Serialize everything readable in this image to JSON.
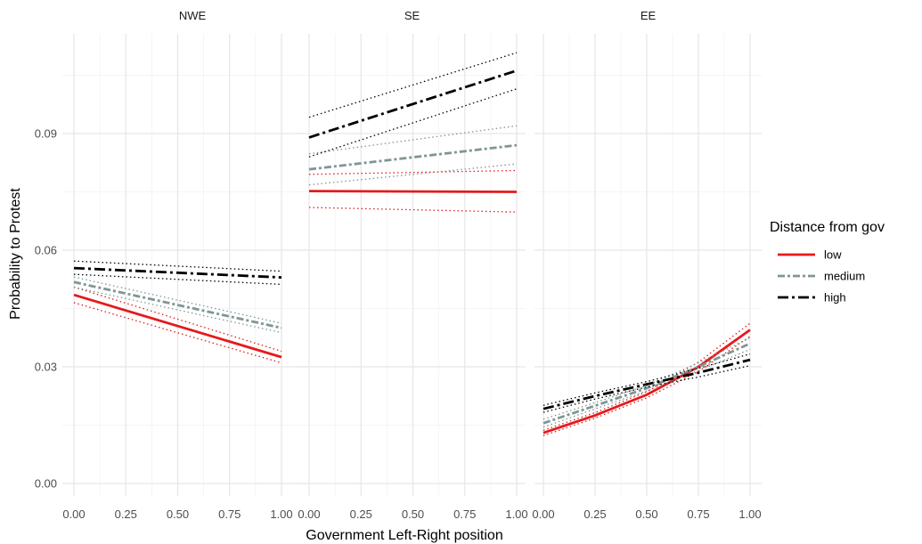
{
  "chart_data": {
    "type": "line",
    "xlabel": "Government Left-Right position",
    "ylabel": "Probability to Protest",
    "x_ticks": [
      "0.00",
      "0.25",
      "0.50",
      "0.75",
      "1.00"
    ],
    "y_ticks": [
      "0.00",
      "0.03",
      "0.06",
      "0.09"
    ],
    "xlim": [
      0,
      1
    ],
    "ylim": [
      0,
      0.11
    ],
    "grid": true,
    "legend": {
      "title": "Distance from gov",
      "position": "right",
      "entries": [
        {
          "label": "low",
          "color": "#e41a1c",
          "dash": "solid"
        },
        {
          "label": "medium",
          "color": "#7f9696",
          "dash": "dashdot"
        },
        {
          "label": "high",
          "color": "#000000",
          "dash": "longdash-dot"
        }
      ]
    },
    "panels": [
      {
        "title": "NWE",
        "series": [
          {
            "name": "low",
            "x": [
              0,
              1
            ],
            "y": [
              0.0485,
              0.0325
            ],
            "lower": [
              0.0465,
              0.031
            ],
            "upper": [
              0.0505,
              0.034
            ]
          },
          {
            "name": "medium",
            "x": [
              0,
              1
            ],
            "y": [
              0.0518,
              0.04
            ],
            "lower": [
              0.0505,
              0.0388
            ],
            "upper": [
              0.0531,
              0.0412
            ]
          },
          {
            "name": "high",
            "x": [
              0,
              1
            ],
            "y": [
              0.0554,
              0.053
            ],
            "lower": [
              0.0538,
              0.0512
            ],
            "upper": [
              0.0572,
              0.0546
            ]
          }
        ]
      },
      {
        "title": "SE",
        "series": [
          {
            "name": "low",
            "x": [
              0,
              1
            ],
            "y": [
              0.0752,
              0.075
            ],
            "lower": [
              0.071,
              0.0698
            ],
            "upper": [
              0.0795,
              0.0805
            ]
          },
          {
            "name": "medium",
            "x": [
              0,
              1
            ],
            "y": [
              0.0808,
              0.087
            ],
            "lower": [
              0.0768,
              0.0822
            ],
            "upper": [
              0.0848,
              0.092
            ]
          },
          {
            "name": "high",
            "x": [
              0,
              1
            ],
            "y": [
              0.089,
              0.1062
            ],
            "lower": [
              0.084,
              0.1015
            ],
            "upper": [
              0.0942,
              0.1108
            ]
          }
        ]
      },
      {
        "title": "EE",
        "series": [
          {
            "name": "low",
            "x": [
              0,
              0.25,
              0.5,
              0.75,
              1
            ],
            "y": [
              0.013,
              0.0175,
              0.0228,
              0.03,
              0.0395
            ],
            "lower": [
              0.0123,
              0.0168,
              0.022,
              0.0288,
              0.0378
            ],
            "upper": [
              0.0137,
              0.0182,
              0.0236,
              0.0312,
              0.0412
            ]
          },
          {
            "name": "medium",
            "x": [
              0,
              0.25,
              0.5,
              0.75,
              1
            ],
            "y": [
              0.0155,
              0.02,
              0.0245,
              0.03,
              0.036
            ],
            "lower": [
              0.0145,
              0.0192,
              0.0238,
              0.029,
              0.0345
            ],
            "upper": [
              0.0165,
              0.0208,
              0.0252,
              0.031,
              0.0375
            ]
          },
          {
            "name": "high",
            "x": [
              0,
              0.25,
              0.5,
              0.75,
              1
            ],
            "y": [
              0.0192,
              0.0225,
              0.0255,
              0.0285,
              0.0318
            ],
            "lower": [
              0.0183,
              0.0217,
              0.0248,
              0.0274,
              0.0303
            ],
            "upper": [
              0.0201,
              0.0233,
              0.0262,
              0.0296,
              0.0333
            ]
          }
        ]
      }
    ]
  }
}
